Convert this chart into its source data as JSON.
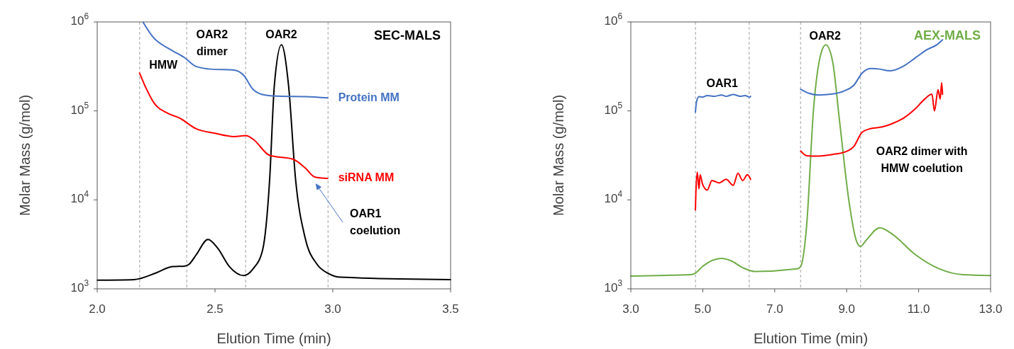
{
  "chart_data": [
    {
      "type": "line",
      "title": "SEC-MALS",
      "xlabel": "Elution Time (min)",
      "ylabel": "Molar Mass (g/mol)",
      "log": "y",
      "xlim": [
        2.0,
        3.5
      ],
      "xticks": [
        {
          "value": 2.0,
          "label": "2.0"
        },
        {
          "value": 2.5,
          "label": "2.5"
        },
        {
          "value": 3.0,
          "label": "3.0"
        },
        {
          "value": 3.5,
          "label": "3.5"
        }
      ],
      "ylim": [
        1000,
        1000000
      ],
      "yticks": [
        {
          "value": 1000,
          "label": "10$^{3}$"
        },
        {
          "value": 10000,
          "label": "10$^{4}$"
        },
        {
          "value": 100000,
          "label": "10$^{5}$"
        },
        {
          "value": 1000000,
          "label": "10$^{6}$"
        }
      ],
      "grid": false,
      "ref_lines": [
        {
          "axis": "x",
          "value": 2.18,
          "color": "#bfbfbf",
          "line_style": "dashed"
        },
        {
          "axis": "x",
          "value": 2.38,
          "color": "#bfbfbf",
          "line_style": "dashed"
        },
        {
          "axis": "x",
          "value": 2.63,
          "color": "#bfbfbf",
          "line_style": "dashed"
        },
        {
          "axis": "x",
          "value": 2.98,
          "color": "#bfbfbf",
          "line_style": "dashed"
        }
      ],
      "annotations": [
        "HMW",
        "OAR2\ndimer",
        "OAR2",
        "OAR1\ncoelution"
      ],
      "series": [
        {
          "color": "#000000",
          "x": [
            2.0,
            2.157,
            2.25,
            2.32,
            2.37,
            2.39,
            2.42,
            2.47,
            2.511,
            2.561,
            2.622,
            2.662,
            2.702,
            2.732,
            2.752,
            2.782,
            2.812,
            2.842,
            2.883,
            2.933,
            2.983,
            3.033,
            3.5
          ],
          "values": [
            1250,
            1270,
            1510,
            1780,
            1800,
            1890,
            2410,
            3590,
            2880,
            1780,
            1410,
            1680,
            2730,
            17000,
            195000,
            553000,
            195000,
            17000,
            3700,
            1890,
            1480,
            1350,
            1270
          ]
        },
        {
          "name": "Protein MM",
          "color": "#4472c4",
          "x": [
            2.195,
            2.235,
            2.31,
            2.37,
            2.42,
            2.481,
            2.581,
            2.622,
            2.662,
            2.712,
            2.782,
            2.883,
            2.978
          ],
          "values": [
            990000,
            684000,
            490000,
            398000,
            316000,
            295000,
            288000,
            251000,
            174000,
            151000,
            146000,
            145000,
            140000
          ]
        },
        {
          "name": "siRNA MM",
          "color": "#ff0000",
          "x": [
            2.18,
            2.21,
            2.24,
            2.3,
            2.35,
            2.42,
            2.5,
            2.581,
            2.631,
            2.662,
            2.732,
            2.832,
            2.883,
            2.923,
            2.978
          ],
          "values": [
            266000,
            174000,
            124000,
            94000,
            83000,
            63000,
            56000,
            51500,
            52800,
            48000,
            31600,
            28600,
            22800,
            18100,
            17400
          ]
        }
      ]
    },
    {
      "type": "line",
      "title": "AEX-MALS",
      "xlabel": "Elution Time (min)",
      "ylabel": "Molar Mass (g/mol)",
      "log": "y",
      "xlim": [
        3.0,
        13.0
      ],
      "xticks": [
        {
          "value": 3,
          "label": "3.0"
        },
        {
          "value": 5,
          "label": "5.0"
        },
        {
          "value": 7,
          "label": "7.0"
        },
        {
          "value": 9,
          "label": "9.0"
        },
        {
          "value": 11,
          "label": "11.0"
        },
        {
          "value": 13,
          "label": "13.0"
        }
      ],
      "ylim": [
        1000,
        1000000
      ],
      "yticks": [
        {
          "value": 1000,
          "label": "10$^{3}$"
        },
        {
          "value": 10000,
          "label": "10$^{4}$"
        },
        {
          "value": 100000,
          "label": "10$^{5}$"
        },
        {
          "value": 1000000,
          "label": "10$^{6}$"
        }
      ],
      "grid": false,
      "ref_lines": [
        {
          "axis": "x",
          "value": 4.8,
          "color": "#bfbfbf",
          "line_style": "dashed"
        },
        {
          "axis": "x",
          "value": 6.29,
          "color": "#bfbfbf",
          "line_style": "dashed"
        },
        {
          "axis": "x",
          "value": 7.72,
          "color": "#bfbfbf",
          "line_style": "dashed"
        },
        {
          "axis": "x",
          "value": 9.385,
          "color": "#bfbfbf",
          "line_style": "dashed"
        }
      ],
      "annotations": [
        "OAR1",
        "OAR2",
        "OAR2 dimer with\nHMW coelution"
      ],
      "series": [
        {
          "color": "#70ad47",
          "x": [
            3.0,
            4.66,
            4.795,
            4.99,
            5.518,
            5.78,
            6.11,
            6.44,
            7.62,
            7.72,
            7.885,
            8.08,
            8.28,
            8.42,
            8.608,
            8.8,
            9.07,
            9.27,
            9.385,
            9.53,
            9.923,
            10.25,
            10.91,
            11.57,
            12.23,
            13.0
          ],
          "values": [
            1390,
            1440,
            1500,
            1780,
            2200,
            2070,
            1730,
            1570,
            1680,
            1780,
            5010,
            106000,
            433000,
            553000,
            361000,
            78300,
            9250,
            3470,
            2990,
            3470,
            4860,
            4170,
            2420,
            1680,
            1440,
            1410
          ]
        },
        {
          "color": "#4472c4",
          "x": [
            4.795,
            4.828,
            4.894,
            4.992,
            5.124,
            5.321,
            5.518,
            5.65,
            5.847,
            6.044,
            6.176,
            6.307,
            6.33,
            7.0,
            7.72,
            7.95,
            8.214,
            8.608,
            8.937,
            9.2,
            9.43,
            9.66,
            9.923,
            10.186,
            10.58,
            10.91,
            11.24,
            11.5,
            11.665
          ],
          "values": [
            97000,
            128000,
            145000,
            143000,
            149000,
            146000,
            151000,
            146000,
            153000,
            146000,
            149000,
            143000,
            146000,
            null,
            175000,
            158000,
            151000,
            155000,
            168000,
            195000,
            266000,
            300000,
            295000,
            282000,
            319000,
            395000,
            490000,
            553000,
            631000
          ]
        },
        {
          "color": "#ff0000",
          "x": [
            4.795,
            4.808,
            4.848,
            4.894,
            4.927,
            4.992,
            5.124,
            5.255,
            5.452,
            5.65,
            5.847,
            5.978,
            6.11,
            6.241,
            6.33,
            7.0,
            7.72,
            7.885,
            8.148,
            8.608,
            8.937,
            9.2,
            9.43,
            9.66,
            9.99,
            10.25,
            10.58,
            10.91,
            11.17,
            11.37,
            11.44,
            11.54,
            11.6,
            11.64,
            11.665
          ],
          "values": [
            7700,
            11800,
            20500,
            13300,
            19200,
            15100,
            12900,
            16500,
            15500,
            17000,
            14600,
            19900,
            16500,
            19200,
            17000,
            null,
            35500,
            31400,
            31000,
            32400,
            34400,
            39800,
            57700,
            63100,
            66000,
            71400,
            83000,
            106000,
            136000,
            154000,
            100000,
            173000,
            136000,
            208000,
            154000
          ]
        }
      ]
    }
  ]
}
